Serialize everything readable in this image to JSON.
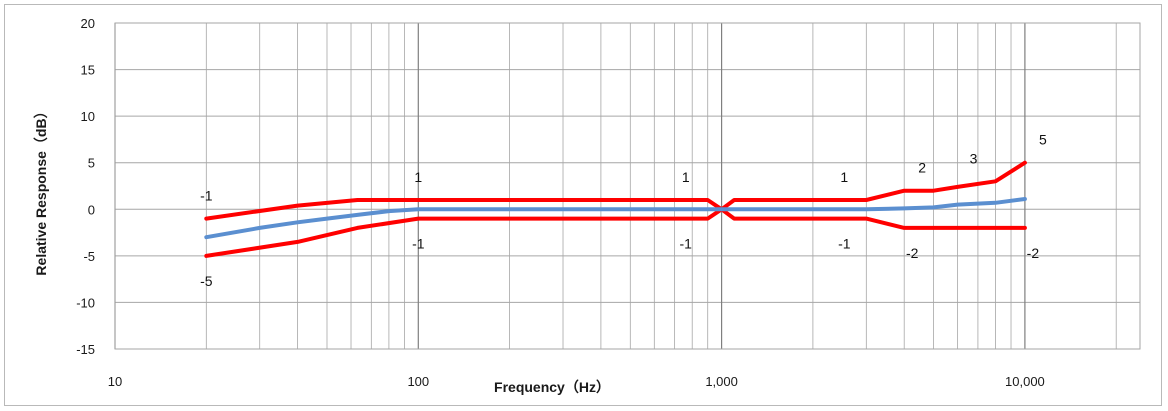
{
  "chart_data": {
    "type": "line",
    "title": "",
    "xlabel": "Frequency（Hz）",
    "ylabel": "Relative Response（dB）",
    "x_scale": "log",
    "xlim": [
      10,
      20000
    ],
    "ylim": [
      -15,
      20
    ],
    "x_ticks": [
      10,
      100,
      1000,
      10000
    ],
    "x_tick_labels": [
      "10",
      "100",
      "1,000",
      "10,000"
    ],
    "y_ticks": [
      -15,
      -10,
      -5,
      0,
      5,
      10,
      15,
      20
    ],
    "y_tick_labels": [
      "-15",
      "-10",
      "-5",
      "0",
      "5",
      "10",
      "15",
      "20"
    ],
    "grid": true,
    "legend": "none",
    "colors": {
      "upper": "#ff0000",
      "lower": "#ff0000",
      "response": "#5b8fd0",
      "grid": "#a6a6a6",
      "major_grid": "#7f7f7f"
    },
    "series": [
      {
        "points": [
          [
            20,
            -1
          ],
          [
            40,
            0.4
          ],
          [
            63,
            1
          ],
          [
            100,
            1
          ],
          [
            500,
            1
          ],
          [
            900,
            1
          ],
          [
            1000,
            0
          ],
          [
            1100,
            1
          ],
          [
            2000,
            1
          ],
          [
            3000,
            1
          ],
          [
            4000,
            2
          ],
          [
            5000,
            2
          ],
          [
            6000,
            2.4
          ],
          [
            8000,
            3
          ],
          [
            10000,
            5
          ]
        ]
      },
      {
        "points": [
          [
            20,
            -5
          ],
          [
            40,
            -3.5
          ],
          [
            63,
            -2
          ],
          [
            100,
            -1
          ],
          [
            500,
            -1
          ],
          [
            900,
            -1
          ],
          [
            1000,
            0
          ],
          [
            1100,
            -1
          ],
          [
            2000,
            -1
          ],
          [
            3000,
            -1
          ],
          [
            4000,
            -2
          ],
          [
            5000,
            -2
          ],
          [
            8000,
            -2
          ],
          [
            10000,
            -2
          ]
        ]
      },
      {
        "points": [
          [
            20,
            -3
          ],
          [
            30,
            -2
          ],
          [
            40,
            -1.4
          ],
          [
            50,
            -1
          ],
          [
            63,
            -0.6
          ],
          [
            80,
            -0.2
          ],
          [
            100,
            0
          ],
          [
            150,
            0
          ],
          [
            500,
            0
          ],
          [
            1000,
            0
          ],
          [
            2000,
            0
          ],
          [
            3000,
            0
          ],
          [
            4000,
            0.1
          ],
          [
            5000,
            0.2
          ],
          [
            6000,
            0.5
          ],
          [
            8000,
            0.7
          ],
          [
            10000,
            1.1
          ]
        ]
      }
    ],
    "data_labels": [
      {
        "x": 20,
        "y": -1,
        "text": "-1",
        "pos": "above"
      },
      {
        "x": 20,
        "y": -5,
        "text": "-5",
        "pos": "below"
      },
      {
        "x": 100,
        "y": 1,
        "text": "1",
        "pos": "above"
      },
      {
        "x": 100,
        "y": -1,
        "text": "-1",
        "pos": "below"
      },
      {
        "x": 900,
        "y": 1,
        "text": "1",
        "pos": "above-left"
      },
      {
        "x": 900,
        "y": -1,
        "text": "-1",
        "pos": "below-left"
      },
      {
        "x": 3000,
        "y": 1,
        "text": "1",
        "pos": "above-left"
      },
      {
        "x": 3000,
        "y": -1,
        "text": "-1",
        "pos": "below-left"
      },
      {
        "x": 4000,
        "y": 2,
        "text": "2",
        "pos": "above-right"
      },
      {
        "x": 4000,
        "y": -2,
        "text": "-2",
        "pos": "below-right"
      },
      {
        "x": 8000,
        "y": 3,
        "text": "3",
        "pos": "above-left"
      },
      {
        "x": 10000,
        "y": 5,
        "text": "5",
        "pos": "above-right"
      },
      {
        "x": 10000,
        "y": -2,
        "text": "-2",
        "pos": "below-right"
      }
    ]
  }
}
